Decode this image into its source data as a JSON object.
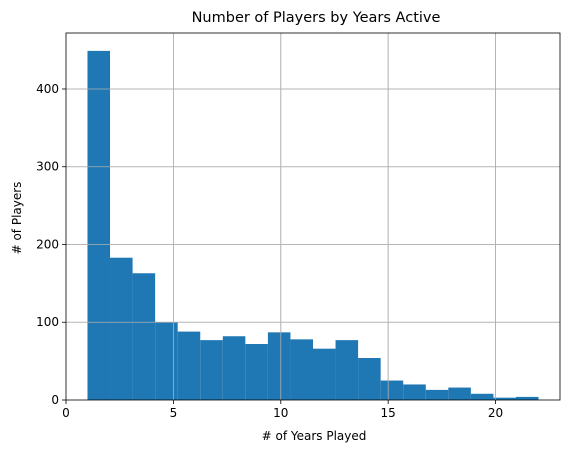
{
  "chart_data": {
    "type": "bar",
    "title": "Number of Players by Years Active",
    "xlabel": "# of Years Played",
    "ylabel": "# of Players",
    "xlim": [
      0,
      23
    ],
    "ylim": [
      0,
      472
    ],
    "xticks": [
      0,
      5,
      10,
      15,
      20
    ],
    "yticks": [
      0,
      100,
      200,
      300,
      400
    ],
    "grid": true,
    "bar_color": "#1f77b4",
    "bins": [
      {
        "x0": 1.0,
        "x1": 2.05,
        "value": 449
      },
      {
        "x0": 2.05,
        "x1": 3.1,
        "value": 183
      },
      {
        "x0": 3.1,
        "x1": 4.15,
        "value": 163
      },
      {
        "x0": 4.15,
        "x1": 5.2,
        "value": 100
      },
      {
        "x0": 5.2,
        "x1": 6.25,
        "value": 88
      },
      {
        "x0": 6.25,
        "x1": 7.3,
        "value": 77
      },
      {
        "x0": 7.3,
        "x1": 8.35,
        "value": 82
      },
      {
        "x0": 8.35,
        "x1": 9.4,
        "value": 72
      },
      {
        "x0": 9.4,
        "x1": 10.45,
        "value": 87
      },
      {
        "x0": 10.45,
        "x1": 11.5,
        "value": 78
      },
      {
        "x0": 11.5,
        "x1": 12.55,
        "value": 66
      },
      {
        "x0": 12.55,
        "x1": 13.6,
        "value": 77
      },
      {
        "x0": 13.6,
        "x1": 14.65,
        "value": 54
      },
      {
        "x0": 14.65,
        "x1": 15.7,
        "value": 25
      },
      {
        "x0": 15.7,
        "x1": 16.75,
        "value": 20
      },
      {
        "x0": 16.75,
        "x1": 17.8,
        "value": 13
      },
      {
        "x0": 17.8,
        "x1": 18.85,
        "value": 16
      },
      {
        "x0": 18.85,
        "x1": 19.9,
        "value": 8
      },
      {
        "x0": 19.9,
        "x1": 20.95,
        "value": 3
      },
      {
        "x0": 20.95,
        "x1": 22.0,
        "value": 4
      }
    ]
  }
}
